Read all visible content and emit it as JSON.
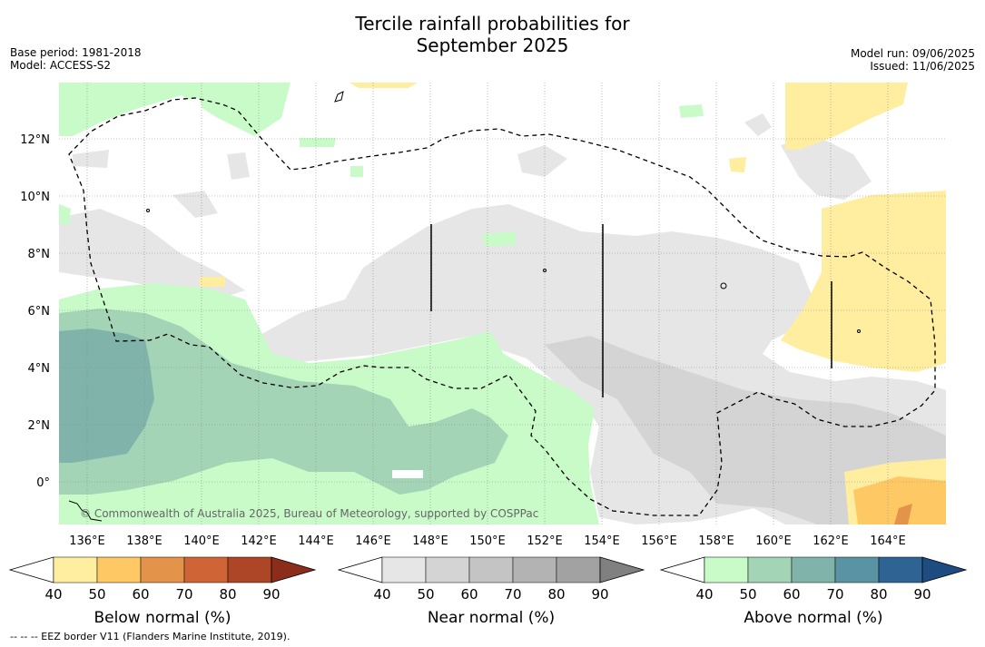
{
  "title_line1": "Tercile rainfall probabilities for",
  "title_line2": "September 2025",
  "base_period": "Base period: 1981-2018",
  "model": "Model: ACCESS-S2",
  "model_run": "Model run: 09/06/2025",
  "issued": "Issued: 11/06/2025",
  "copyright": "© Commonwealth of Australia 2025, Bureau of Meteorology, supported by COSPPac",
  "lat_labels": [
    "12°N",
    "10°N",
    "8°N",
    "6°N",
    "4°N",
    "2°N",
    "0°"
  ],
  "lon_labels": [
    "136°E",
    "138°E",
    "140°E",
    "142°E",
    "144°E",
    "146°E",
    "148°E",
    "150°E",
    "152°E",
    "154°E",
    "156°E",
    "158°E",
    "160°E",
    "162°E",
    "164°E"
  ],
  "colorbars": [
    {
      "label": "Below normal (%)",
      "ticks": [
        "40",
        "50",
        "60",
        "70",
        "80",
        "90"
      ],
      "colors": [
        "#ffffff",
        "#ffeda0",
        "#fec965",
        "#e3944a",
        "#cf6436",
        "#ac4626",
        "#8c2d1c"
      ]
    },
    {
      "label": "Near normal (%)",
      "ticks": [
        "40",
        "50",
        "60",
        "70",
        "80",
        "90"
      ],
      "colors": [
        "#ffffff",
        "#e6e6e6",
        "#d4d4d4",
        "#c4c4c4",
        "#b3b3b3",
        "#a2a2a2",
        "#808080"
      ]
    },
    {
      "label": "Above normal (%)",
      "ticks": [
        "40",
        "50",
        "60",
        "70",
        "80",
        "90"
      ],
      "colors": [
        "#ffffff",
        "#c9fbc9",
        "#a3d4b5",
        "#80b4aa",
        "#5a93a3",
        "#2f6394",
        "#1e4b80"
      ]
    }
  ],
  "footnote": "--  --  -- EEZ border V11 (Flanders Marine Institute, 2019)."
}
